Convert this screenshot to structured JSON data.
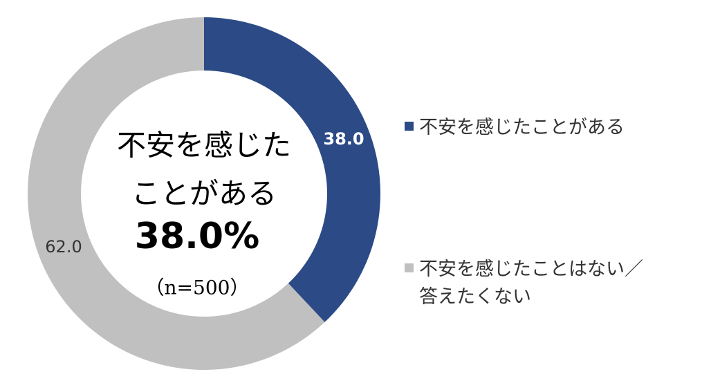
{
  "chart_data": {
    "type": "donut",
    "categories": [
      "不安を感じたことがある",
      "不安を感じたことはない／答えたくない"
    ],
    "values": [
      38.0,
      62.0
    ],
    "value_labels": [
      "38.0",
      "62.0"
    ],
    "colors": [
      "#2b4a86",
      "#c0c0c0"
    ],
    "center_text": [
      "不安を感じた",
      "ことがある"
    ],
    "center_value": "38.0%",
    "center_note": "（n=500）"
  }
}
